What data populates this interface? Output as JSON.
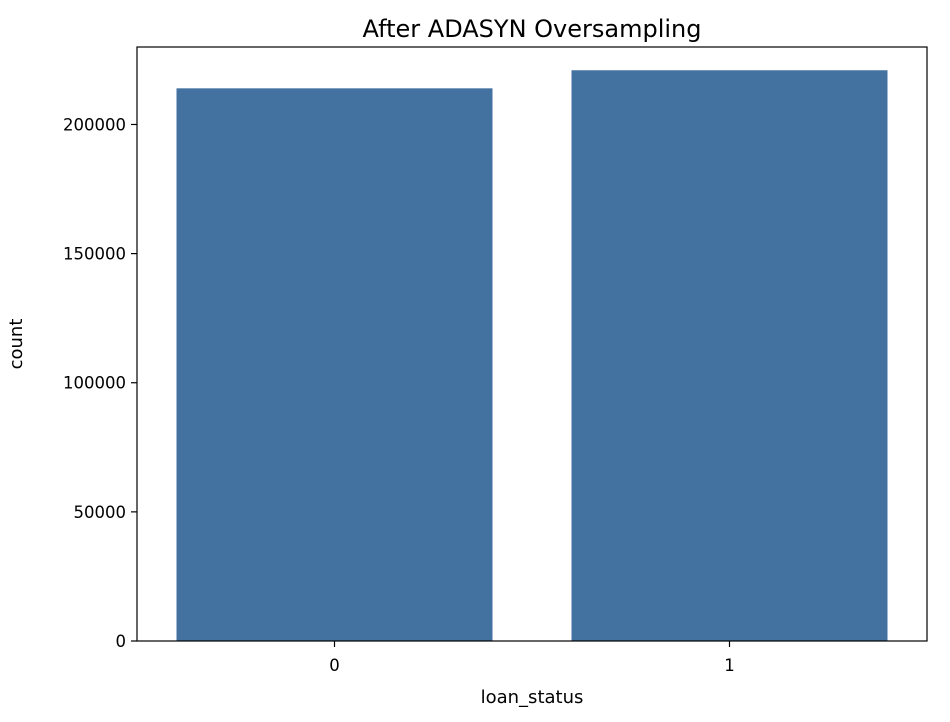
{
  "chart_data": {
    "type": "bar",
    "title": "After ADASYN Oversampling",
    "xlabel": "loan_status",
    "ylabel": "count",
    "categories": [
      "0",
      "1"
    ],
    "values": [
      214000,
      221000
    ],
    "ylim": [
      0,
      230000
    ],
    "yticks": [
      0,
      50000,
      100000,
      150000,
      200000
    ],
    "grid": false,
    "colors": {
      "bar": "#4472a0",
      "axis": "#000000",
      "background": "#ffffff"
    }
  }
}
